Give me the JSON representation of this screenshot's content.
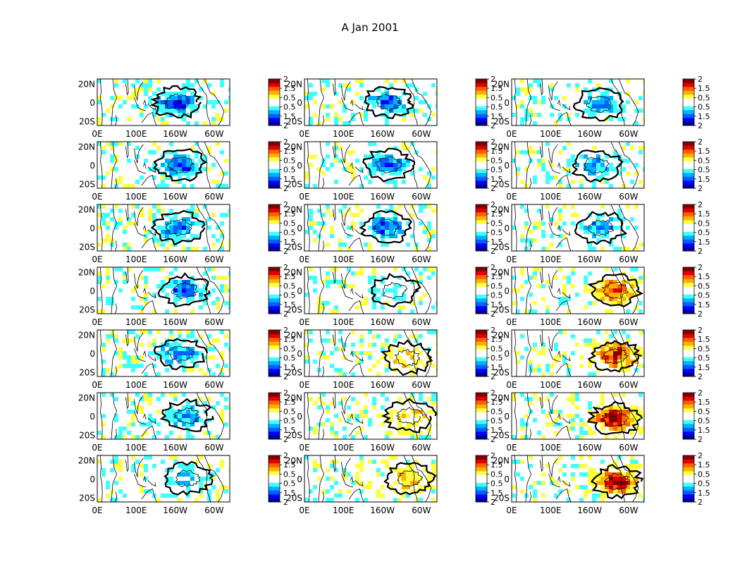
{
  "figure": {
    "title": "A Jan 2001"
  },
  "chart_data": {
    "type": "heatmap",
    "layout": {
      "rows": 7,
      "cols": 3
    },
    "map": {
      "y_ticks": [
        "20N",
        "0",
        "20S"
      ],
      "x_ticks": [
        "0E",
        "100E",
        "160W",
        "60W"
      ],
      "lat_range": [
        -25,
        25
      ],
      "lon_range": [
        0,
        340
      ]
    },
    "colorbar": {
      "range": [
        -2,
        2
      ],
      "tick_labels": [
        "2",
        "1.5",
        "0.5",
        "0.5",
        "1.5",
        "2"
      ],
      "colors": [
        "#00008f",
        "#0000ff",
        "#0060ff",
        "#00b0ff",
        "#40ffff",
        "#ffffff",
        "#ffffff",
        "#ffff40",
        "#ffb000",
        "#ff6000",
        "#e00000",
        "#800000"
      ]
    },
    "panels": [
      {
        "row": 1,
        "col": 1,
        "anomaly": [
          {
            "lon": 205,
            "lat": 0,
            "value": -1.4
          }
        ]
      },
      {
        "row": 1,
        "col": 2,
        "anomaly": [
          {
            "lon": 215,
            "lat": 0,
            "value": -1.2
          }
        ]
      },
      {
        "row": 1,
        "col": 3,
        "anomaly": [
          {
            "lon": 225,
            "lat": -2,
            "value": -0.9
          }
        ]
      },
      {
        "row": 2,
        "col": 1,
        "anomaly": [
          {
            "lon": 215,
            "lat": 0,
            "value": -1.4
          }
        ]
      },
      {
        "row": 2,
        "col": 2,
        "anomaly": [
          {
            "lon": 215,
            "lat": 0,
            "value": -1.2
          }
        ]
      },
      {
        "row": 2,
        "col": 3,
        "anomaly": [
          {
            "lon": 215,
            "lat": 0,
            "value": -1.0
          }
        ]
      },
      {
        "row": 3,
        "col": 1,
        "anomaly": [
          {
            "lon": 210,
            "lat": 0,
            "value": -1.2
          }
        ]
      },
      {
        "row": 3,
        "col": 2,
        "anomaly": [
          {
            "lon": 210,
            "lat": 0,
            "value": -1.2
          }
        ]
      },
      {
        "row": 3,
        "col": 3,
        "anomaly": [
          {
            "lon": 230,
            "lat": 0,
            "value": -1.0
          }
        ]
      },
      {
        "row": 4,
        "col": 1,
        "anomaly": [
          {
            "lon": 225,
            "lat": 0,
            "value": -1.3
          }
        ]
      },
      {
        "row": 4,
        "col": 2,
        "anomaly": [
          {
            "lon": 230,
            "lat": 0,
            "value": -0.5
          }
        ]
      },
      {
        "row": 4,
        "col": 3,
        "anomaly": [
          {
            "lon": 265,
            "lat": 0,
            "value": 1.4
          }
        ]
      },
      {
        "row": 5,
        "col": 1,
        "anomaly": [
          {
            "lon": 215,
            "lat": 0,
            "value": -1.0
          }
        ]
      },
      {
        "row": 5,
        "col": 2,
        "anomaly": [
          {
            "lon": 265,
            "lat": -5,
            "value": 0.5
          }
        ]
      },
      {
        "row": 5,
        "col": 3,
        "anomaly": [
          {
            "lon": 265,
            "lat": -3,
            "value": 1.6
          }
        ]
      },
      {
        "row": 6,
        "col": 1,
        "anomaly": [
          {
            "lon": 230,
            "lat": 0,
            "value": -1.0
          }
        ]
      },
      {
        "row": 6,
        "col": 2,
        "anomaly": [
          {
            "lon": 270,
            "lat": 0,
            "value": 0.6
          }
        ]
      },
      {
        "row": 6,
        "col": 3,
        "anomaly": [
          {
            "lon": 265,
            "lat": -3,
            "value": 1.9
          }
        ]
      },
      {
        "row": 7,
        "col": 1,
        "anomaly": [
          {
            "lon": 230,
            "lat": 0,
            "value": -0.6
          }
        ]
      },
      {
        "row": 7,
        "col": 2,
        "anomaly": [
          {
            "lon": 270,
            "lat": 0,
            "value": 0.8
          }
        ]
      },
      {
        "row": 7,
        "col": 3,
        "anomaly": [
          {
            "lon": 270,
            "lat": -3,
            "value": 2.0
          }
        ]
      }
    ]
  }
}
